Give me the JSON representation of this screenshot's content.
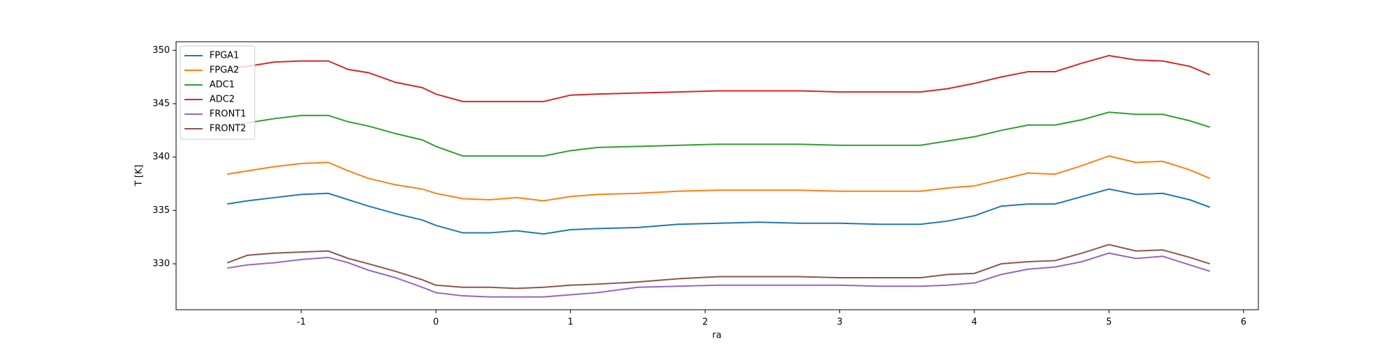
{
  "chart_data": {
    "type": "line",
    "x_label": "ra",
    "y_label": "T [K]",
    "x": [
      -1.55,
      -1.4,
      -1.2,
      -1.0,
      -0.8,
      -0.65,
      -0.5,
      -0.3,
      -0.1,
      0.0,
      0.2,
      0.4,
      0.6,
      0.8,
      1.0,
      1.2,
      1.5,
      1.8,
      2.1,
      2.4,
      2.7,
      3.0,
      3.3,
      3.6,
      3.8,
      4.0,
      4.2,
      4.4,
      4.6,
      4.8,
      5.0,
      5.2,
      5.4,
      5.6,
      5.75
    ],
    "series": [
      {
        "name": "FPGA1",
        "color": "#1f77b4",
        "values": [
          335.6,
          335.9,
          336.2,
          336.5,
          336.6,
          336.0,
          335.4,
          334.7,
          334.1,
          333.6,
          332.9,
          332.9,
          333.1,
          332.8,
          333.2,
          333.3,
          333.4,
          333.7,
          333.8,
          333.9,
          333.8,
          333.8,
          333.7,
          333.7,
          334.0,
          334.5,
          335.4,
          335.6,
          335.6,
          336.3,
          337.0,
          336.5,
          336.6,
          336.0,
          335.3
        ]
      },
      {
        "name": "FPGA2",
        "color": "#ff7f0e",
        "values": [
          338.4,
          338.7,
          339.1,
          339.4,
          339.5,
          338.7,
          338.0,
          337.4,
          337.0,
          336.6,
          336.1,
          336.0,
          336.2,
          335.9,
          336.3,
          336.5,
          336.6,
          336.8,
          336.9,
          336.9,
          336.9,
          336.8,
          336.8,
          336.8,
          337.1,
          337.3,
          337.9,
          338.5,
          338.4,
          339.2,
          340.1,
          339.5,
          339.6,
          338.8,
          338.0
        ]
      },
      {
        "name": "ADC1",
        "color": "#2ca02c",
        "values": [
          343.0,
          343.2,
          343.6,
          343.9,
          343.9,
          343.3,
          342.9,
          342.2,
          341.6,
          341.0,
          340.1,
          340.1,
          340.1,
          340.1,
          340.6,
          340.9,
          341.0,
          341.1,
          341.2,
          341.2,
          341.2,
          341.1,
          341.1,
          341.1,
          341.5,
          341.9,
          342.5,
          343.0,
          343.0,
          343.5,
          344.2,
          344.0,
          344.0,
          343.4,
          342.8
        ]
      },
      {
        "name": "ADC2",
        "color": "#d62728",
        "values": [
          348.3,
          348.5,
          348.9,
          349.0,
          349.0,
          348.2,
          347.9,
          347.0,
          346.5,
          345.9,
          345.2,
          345.2,
          345.2,
          345.2,
          345.8,
          345.9,
          346.0,
          346.1,
          346.2,
          346.2,
          346.2,
          346.1,
          346.1,
          346.1,
          346.4,
          346.9,
          347.5,
          348.0,
          348.0,
          348.8,
          349.5,
          349.1,
          349.0,
          348.5,
          347.7
        ]
      },
      {
        "name": "FRONT1",
        "color": "#9467bd",
        "values": [
          329.6,
          329.9,
          330.1,
          330.4,
          330.6,
          330.1,
          329.4,
          328.7,
          327.8,
          327.3,
          327.0,
          326.9,
          326.9,
          326.9,
          327.1,
          327.3,
          327.8,
          327.9,
          328.0,
          328.0,
          328.0,
          328.0,
          327.9,
          327.9,
          328.0,
          328.2,
          329.0,
          329.5,
          329.7,
          330.2,
          331.0,
          330.5,
          330.7,
          329.9,
          329.3
        ]
      },
      {
        "name": "FRONT2",
        "color": "#8c564b",
        "values": [
          330.1,
          330.8,
          331.0,
          331.1,
          331.2,
          330.5,
          330.0,
          329.3,
          328.5,
          328.0,
          327.8,
          327.8,
          327.7,
          327.8,
          328.0,
          328.1,
          328.3,
          328.6,
          328.8,
          328.8,
          328.8,
          328.7,
          328.7,
          328.7,
          329.0,
          329.1,
          330.0,
          330.2,
          330.3,
          331.0,
          331.8,
          331.2,
          331.3,
          330.6,
          330.0
        ]
      }
    ],
    "xlim": [
      -1.93,
      6.11
    ],
    "ylim": [
      325.7,
      350.8
    ],
    "xticks": [
      -1,
      0,
      1,
      2,
      3,
      4,
      5,
      6
    ],
    "yticks": [
      330,
      335,
      340,
      345,
      350
    ],
    "legend": "upper left",
    "grid": false
  }
}
